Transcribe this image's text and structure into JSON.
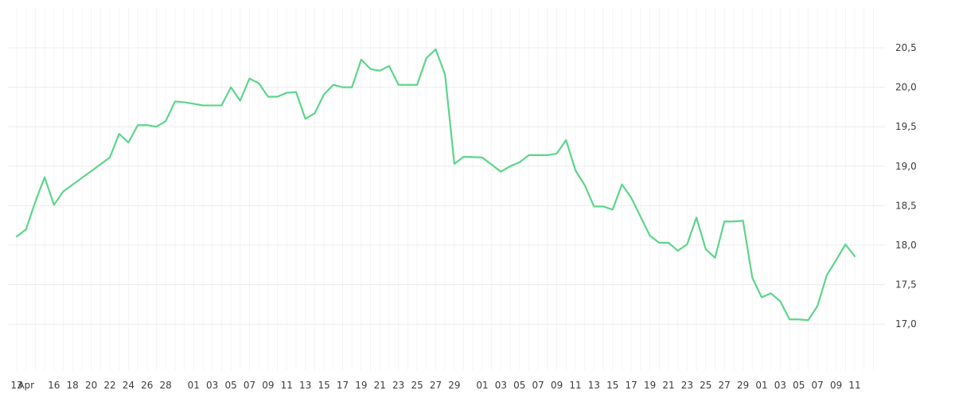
{
  "chart_data": {
    "type": "line",
    "title": "",
    "xlabel": "",
    "ylabel": "",
    "ylim": [
      16.5,
      20.85
    ],
    "grid": true,
    "y_axis_side": "right",
    "y_ticks": [
      {
        "value": 17.0,
        "label": "17,0"
      },
      {
        "value": 17.5,
        "label": "17,5"
      },
      {
        "value": 18.0,
        "label": "18,0"
      },
      {
        "value": 18.5,
        "label": "18,5"
      },
      {
        "value": 19.0,
        "label": "19,0"
      },
      {
        "value": 19.5,
        "label": "19,5"
      },
      {
        "value": 20.0,
        "label": "20,0"
      },
      {
        "value": 20.5,
        "label": "20,5"
      }
    ],
    "x_ticks": [
      {
        "label": "13",
        "i": 0
      },
      {
        "label": "Apr",
        "i": 1
      },
      {
        "label": "16",
        "i": 4
      },
      {
        "label": "18",
        "i": 6
      },
      {
        "label": "20",
        "i": 8
      },
      {
        "label": "22",
        "i": 10
      },
      {
        "label": "24",
        "i": 12
      },
      {
        "label": "26",
        "i": 14
      },
      {
        "label": "28",
        "i": 16
      },
      {
        "label": "01",
        "i": 19
      },
      {
        "label": "03",
        "i": 21
      },
      {
        "label": "05",
        "i": 23
      },
      {
        "label": "07",
        "i": 25
      },
      {
        "label": "09",
        "i": 27
      },
      {
        "label": "11",
        "i": 29
      },
      {
        "label": "13",
        "i": 31
      },
      {
        "label": "15",
        "i": 33
      },
      {
        "label": "17",
        "i": 35
      },
      {
        "label": "19",
        "i": 37
      },
      {
        "label": "21",
        "i": 39
      },
      {
        "label": "23",
        "i": 41
      },
      {
        "label": "25",
        "i": 43
      },
      {
        "label": "27",
        "i": 45
      },
      {
        "label": "29",
        "i": 47
      },
      {
        "label": "01",
        "i": 50
      },
      {
        "label": "03",
        "i": 52
      },
      {
        "label": "05",
        "i": 54
      },
      {
        "label": "07",
        "i": 56
      },
      {
        "label": "09",
        "i": 58
      },
      {
        "label": "11",
        "i": 60
      },
      {
        "label": "13",
        "i": 62
      },
      {
        "label": "15",
        "i": 64
      },
      {
        "label": "17",
        "i": 66
      },
      {
        "label": "19",
        "i": 68
      },
      {
        "label": "21",
        "i": 70
      },
      {
        "label": "23",
        "i": 72
      },
      {
        "label": "25",
        "i": 74
      },
      {
        "label": "27",
        "i": 76
      },
      {
        "label": "29",
        "i": 78
      },
      {
        "label": "01",
        "i": 80
      },
      {
        "label": "03",
        "i": 82
      },
      {
        "label": "05",
        "i": 84
      },
      {
        "label": "07",
        "i": 86
      },
      {
        "label": "09",
        "i": 88
      },
      {
        "label": "11",
        "i": 90
      }
    ],
    "x_count": 93,
    "series": [
      {
        "color": "#5cd68a",
        "points": [
          [
            0,
            18.11
          ],
          [
            1,
            18.2
          ],
          [
            2,
            18.55
          ],
          [
            3,
            18.86
          ],
          [
            4,
            18.51
          ],
          [
            5,
            18.68
          ],
          [
            10,
            19.11
          ],
          [
            11,
            19.41
          ],
          [
            12,
            19.3
          ],
          [
            13,
            19.52
          ],
          [
            14,
            19.52
          ],
          [
            15,
            19.5
          ],
          [
            16,
            19.57
          ],
          [
            17,
            19.82
          ],
          [
            18,
            19.81
          ],
          [
            20,
            19.77
          ],
          [
            22,
            19.77
          ],
          [
            23,
            20.0
          ],
          [
            24,
            19.83
          ],
          [
            25,
            20.11
          ],
          [
            26,
            20.05
          ],
          [
            27,
            19.88
          ],
          [
            28,
            19.88
          ],
          [
            29,
            19.93
          ],
          [
            30,
            19.94
          ],
          [
            31,
            19.6
          ],
          [
            32,
            19.67
          ],
          [
            33,
            19.91
          ],
          [
            34,
            20.03
          ],
          [
            35,
            20.0
          ],
          [
            36,
            20.0
          ],
          [
            37,
            20.35
          ],
          [
            38,
            20.23
          ],
          [
            39,
            20.21
          ],
          [
            40,
            20.27
          ],
          [
            41,
            20.03
          ],
          [
            43,
            20.03
          ],
          [
            44,
            20.37
          ],
          [
            45,
            20.48
          ],
          [
            46,
            20.16
          ],
          [
            47,
            19.03
          ],
          [
            48,
            19.12
          ],
          [
            50,
            19.11
          ],
          [
            52,
            18.93
          ],
          [
            53,
            19.0
          ],
          [
            54,
            19.05
          ],
          [
            55,
            19.14
          ],
          [
            57,
            19.14
          ],
          [
            58,
            19.16
          ],
          [
            59,
            19.33
          ],
          [
            60,
            18.95
          ],
          [
            61,
            18.76
          ],
          [
            62,
            18.49
          ],
          [
            63,
            18.49
          ],
          [
            64,
            18.45
          ],
          [
            65,
            18.77
          ],
          [
            66,
            18.6
          ],
          [
            67,
            18.36
          ],
          [
            68,
            18.12
          ],
          [
            69,
            18.03
          ],
          [
            70,
            18.03
          ],
          [
            71,
            17.93
          ],
          [
            72,
            18.01
          ],
          [
            73,
            18.35
          ],
          [
            74,
            17.95
          ],
          [
            75,
            17.84
          ],
          [
            76,
            18.3
          ],
          [
            77,
            18.3
          ],
          [
            78,
            18.31
          ],
          [
            79,
            17.59
          ],
          [
            80,
            17.34
          ],
          [
            81,
            17.39
          ],
          [
            82,
            17.29
          ],
          [
            83,
            17.06
          ],
          [
            84,
            17.06
          ],
          [
            85,
            17.05
          ],
          [
            86,
            17.23
          ],
          [
            87,
            17.62
          ],
          [
            88,
            17.81
          ],
          [
            89,
            18.01
          ],
          [
            90,
            17.86
          ]
        ]
      }
    ]
  }
}
